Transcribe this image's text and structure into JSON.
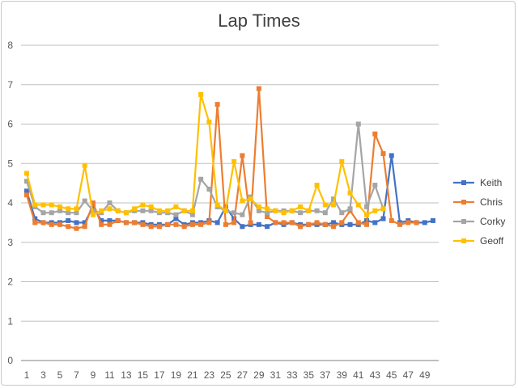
{
  "chart_data": {
    "type": "line",
    "title": "Lap Times",
    "xlabel": "",
    "ylabel": "",
    "ylim": [
      0,
      8
    ],
    "yticks": [
      0,
      1,
      2,
      3,
      4,
      5,
      6,
      7,
      8
    ],
    "xlim": [
      1,
      50
    ],
    "xticks": [
      1,
      3,
      5,
      7,
      9,
      11,
      13,
      15,
      17,
      19,
      21,
      23,
      25,
      27,
      29,
      31,
      33,
      35,
      37,
      39,
      41,
      43,
      45,
      47,
      49
    ],
    "grid": "horizontal",
    "legend_position": "right",
    "series": [
      {
        "name": "Keith",
        "color": "#4472C4",
        "marker": "square",
        "x": [
          1,
          2,
          3,
          4,
          5,
          6,
          7,
          8,
          9,
          10,
          11,
          12,
          13,
          14,
          15,
          16,
          17,
          18,
          19,
          20,
          21,
          22,
          23,
          24,
          25,
          26,
          27,
          28,
          29,
          30,
          31,
          32,
          33,
          34,
          35,
          36,
          37,
          38,
          39,
          40,
          41,
          42,
          43,
          44,
          45,
          46,
          47,
          48,
          49,
          50
        ],
        "values": [
          4.3,
          3.6,
          3.5,
          3.5,
          3.5,
          3.55,
          3.5,
          3.5,
          3.9,
          3.55,
          3.55,
          3.55,
          3.5,
          3.5,
          3.5,
          3.45,
          3.45,
          3.45,
          3.6,
          3.45,
          3.5,
          3.5,
          3.55,
          3.5,
          3.9,
          3.6,
          3.4,
          3.45,
          3.45,
          3.4,
          3.5,
          3.45,
          3.5,
          3.45,
          3.45,
          3.45,
          3.45,
          3.5,
          3.45,
          3.45,
          3.45,
          3.55,
          3.5,
          3.6,
          5.2,
          3.5,
          3.55,
          3.5,
          3.5,
          3.55
        ]
      },
      {
        "name": "Chris",
        "color": "#ED7D31",
        "marker": "square",
        "x": [
          1,
          2,
          3,
          4,
          5,
          6,
          7,
          8,
          9,
          10,
          11,
          12,
          13,
          14,
          15,
          16,
          17,
          18,
          19,
          20,
          21,
          22,
          23,
          24,
          25,
          26,
          27,
          28,
          29,
          30,
          31,
          32,
          33,
          34,
          35,
          36,
          37,
          38,
          39,
          40,
          41,
          42,
          43,
          44,
          45,
          46,
          47,
          48
        ],
        "values": [
          4.2,
          3.5,
          3.5,
          3.45,
          3.45,
          3.4,
          3.35,
          3.4,
          4.0,
          3.45,
          3.45,
          3.55,
          3.5,
          3.5,
          3.45,
          3.4,
          3.4,
          3.45,
          3.45,
          3.4,
          3.45,
          3.45,
          3.5,
          6.5,
          3.45,
          3.5,
          5.2,
          3.5,
          6.9,
          3.65,
          3.5,
          3.5,
          3.5,
          3.4,
          3.45,
          3.5,
          3.45,
          3.4,
          3.5,
          3.8,
          3.5,
          3.45,
          5.75,
          5.25,
          3.55,
          3.45,
          3.5,
          3.5
        ]
      },
      {
        "name": "Corky",
        "color": "#A5A5A5",
        "marker": "square",
        "x": [
          1,
          2,
          3,
          4,
          5,
          6,
          7,
          8,
          9,
          10,
          11,
          12,
          13,
          14,
          15,
          16,
          17,
          18,
          19,
          20,
          21,
          22,
          23,
          24,
          25,
          26,
          27,
          28,
          29,
          30,
          31,
          32,
          33,
          34,
          35,
          36,
          37,
          38,
          39,
          40,
          41,
          42,
          43,
          44
        ],
        "values": [
          4.55,
          3.9,
          3.75,
          3.75,
          3.8,
          3.75,
          3.75,
          4.05,
          3.8,
          3.75,
          4.0,
          3.8,
          3.75,
          3.8,
          3.8,
          3.8,
          3.75,
          3.75,
          3.7,
          3.8,
          3.7,
          4.6,
          4.35,
          3.9,
          3.8,
          3.75,
          3.7,
          4.15,
          3.8,
          3.75,
          3.8,
          3.8,
          3.8,
          3.75,
          3.8,
          3.8,
          3.75,
          4.1,
          3.75,
          3.85,
          6.0,
          3.9,
          4.45,
          3.85
        ]
      },
      {
        "name": "Geoff",
        "color": "#FFC000",
        "marker": "square",
        "x": [
          1,
          2,
          3,
          4,
          5,
          6,
          7,
          8,
          9,
          10,
          11,
          12,
          13,
          14,
          15,
          16,
          17,
          18,
          19,
          20,
          21,
          22,
          23,
          24,
          25,
          26,
          27,
          28,
          29,
          30,
          31,
          32,
          33,
          34,
          35,
          36,
          37,
          38,
          39,
          40,
          41,
          42,
          43,
          44
        ],
        "values": [
          4.75,
          3.95,
          3.95,
          3.95,
          3.9,
          3.85,
          3.85,
          4.95,
          3.7,
          3.8,
          3.85,
          3.8,
          3.75,
          3.85,
          3.95,
          3.9,
          3.8,
          3.8,
          3.9,
          3.8,
          3.8,
          6.75,
          6.05,
          3.95,
          3.8,
          5.05,
          4.05,
          4.1,
          3.9,
          3.85,
          3.8,
          3.75,
          3.8,
          3.9,
          3.8,
          4.45,
          3.95,
          3.95,
          5.05,
          4.25,
          3.95,
          3.7,
          3.8,
          3.85
        ]
      }
    ]
  }
}
